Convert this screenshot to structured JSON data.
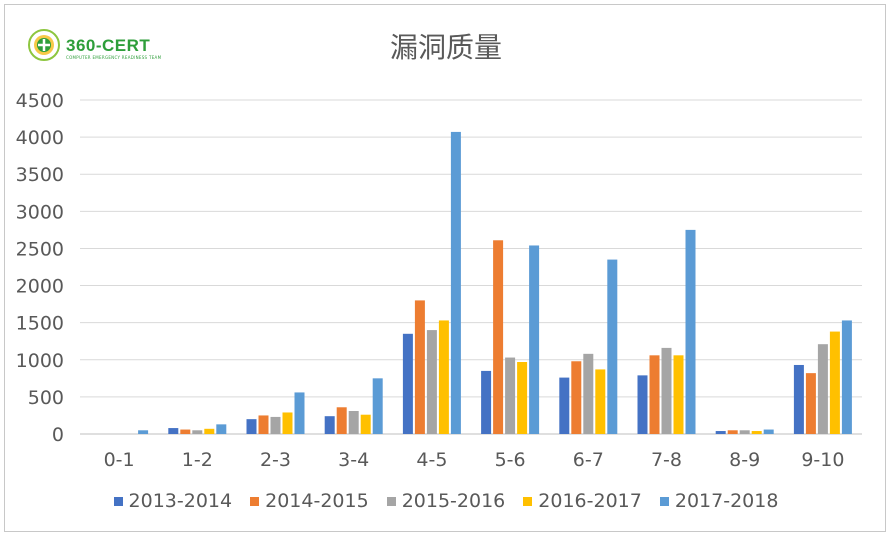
{
  "header": {
    "logo_text": "360-CERT",
    "logo_subtext": "COMPUTER EMERGENCY READINESS TEAM"
  },
  "chart_data": {
    "type": "bar",
    "title": "漏洞质量",
    "xlabel": "",
    "ylabel": "",
    "ylim": [
      0,
      4500
    ],
    "yticks": [
      "0",
      "500",
      "1000",
      "1500",
      "2000",
      "2500",
      "3000",
      "3500",
      "4000",
      "4500"
    ],
    "grid": "horizontal",
    "legend_position": "bottom",
    "categories": [
      "0-1",
      "1-2",
      "2-3",
      "3-4",
      "4-5",
      "5-6",
      "6-7",
      "7-8",
      "8-9",
      "9-10"
    ],
    "series": [
      {
        "name": "2013-2014",
        "color": "#4472c4",
        "values": [
          0,
          80,
          200,
          240,
          1350,
          850,
          760,
          790,
          40,
          930
        ]
      },
      {
        "name": "2014-2015",
        "color": "#ed7d31",
        "values": [
          0,
          60,
          250,
          360,
          1800,
          2610,
          980,
          1060,
          50,
          820
        ]
      },
      {
        "name": "2015-2016",
        "color": "#a5a5a5",
        "values": [
          0,
          50,
          230,
          310,
          1400,
          1030,
          1080,
          1160,
          50,
          1210
        ]
      },
      {
        "name": "2016-2017",
        "color": "#ffc000",
        "values": [
          0,
          70,
          290,
          260,
          1530,
          970,
          870,
          1060,
          40,
          1380
        ]
      },
      {
        "name": "2017-2018",
        "color": "#5b9bd5",
        "values": [
          50,
          130,
          560,
          750,
          4070,
          2540,
          2350,
          2750,
          60,
          1530
        ]
      }
    ]
  }
}
